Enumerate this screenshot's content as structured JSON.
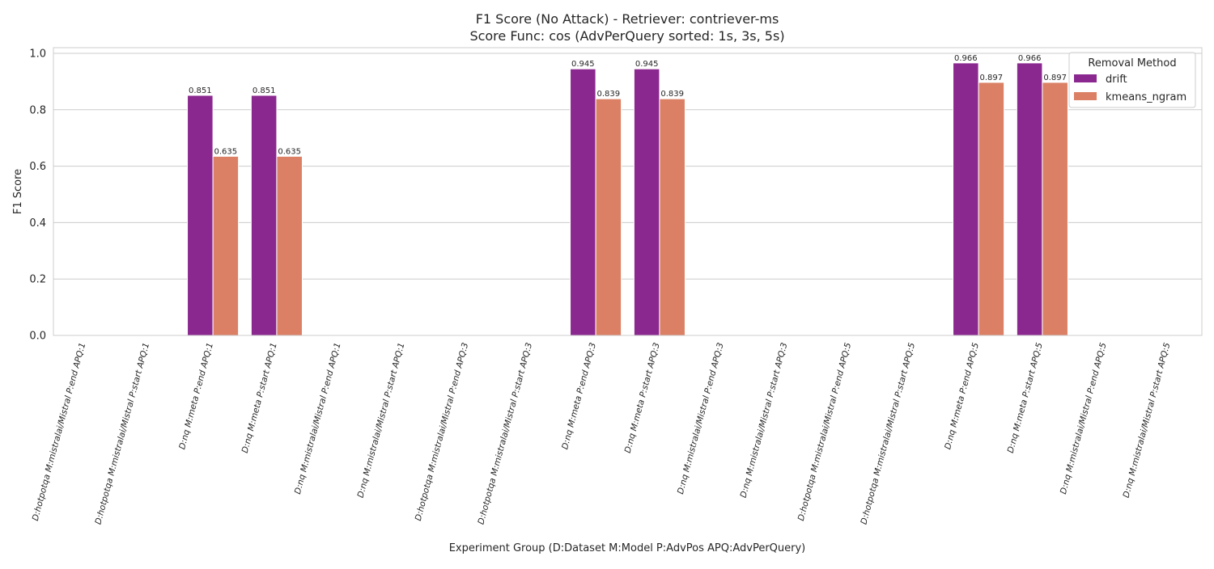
{
  "chart_data": {
    "type": "bar",
    "title": "F1 Score (No Attack) - Retriever: contriever-ms",
    "subtitle": "Score Func: cos (AdvPerQuery sorted: 1s, 3s, 5s)",
    "xlabel": "Experiment Group (D:Dataset M:Model P:AdvPos APQ:AdvPerQuery)",
    "ylabel": "F1 Score",
    "ylim": [
      0,
      1.02
    ],
    "yticks": [
      "0.0",
      "0.2",
      "0.4",
      "0.6",
      "0.8",
      "1.0"
    ],
    "grid": "horizontal",
    "legend": {
      "title": "Removal Method",
      "placement": "top-right"
    },
    "categories": [
      "D:hotpotqa M:mistralai/Mistral P:end APQ:1",
      "D:hotpotqa M:mistralai/Mistral P:start APQ:1",
      "D:nq M:meta P:end APQ:1",
      "D:nq M:meta P:start APQ:1",
      "D:nq M:mistralai/Mistral P:end APQ:1",
      "D:nq M:mistralai/Mistral P:start APQ:1",
      "D:hotpotqa M:mistralai/Mistral P:end APQ:3",
      "D:hotpotqa M:mistralai/Mistral P:start APQ:3",
      "D:nq M:meta P:end APQ:3",
      "D:nq M:meta P:start APQ:3",
      "D:nq M:mistralai/Mistral P:end APQ:3",
      "D:nq M:mistralai/Mistral P:start APQ:3",
      "D:hotpotqa M:mistralai/Mistral P:end APQ:5",
      "D:hotpotqa M:mistralai/Mistral P:start APQ:5",
      "D:nq M:meta P:end APQ:5",
      "D:nq M:meta P:start APQ:5",
      "D:nq M:mistralai/Mistral P:end APQ:5",
      "D:nq M:mistralai/Mistral P:start APQ:5"
    ],
    "series": [
      {
        "name": "drift",
        "color": "#8b2890",
        "values": [
          null,
          null,
          0.851,
          0.851,
          null,
          null,
          null,
          null,
          0.945,
          0.945,
          null,
          null,
          null,
          null,
          0.966,
          0.966,
          null,
          null
        ],
        "labels": [
          "",
          "",
          "0.851",
          "0.851",
          "",
          "",
          "",
          "",
          "0.945",
          "0.945",
          "",
          "",
          "",
          "",
          "0.966",
          "0.966",
          "",
          ""
        ]
      },
      {
        "name": "kmeans_ngram",
        "color": "#db8064",
        "values": [
          null,
          null,
          0.635,
          0.635,
          null,
          null,
          null,
          null,
          0.839,
          0.839,
          null,
          null,
          null,
          null,
          0.897,
          0.897,
          null,
          null
        ],
        "labels": [
          "",
          "",
          "0.635",
          "0.635",
          "",
          "",
          "",
          "",
          "0.839",
          "0.839",
          "",
          "",
          "",
          "",
          "0.897",
          "0.897",
          "",
          ""
        ]
      }
    ]
  }
}
